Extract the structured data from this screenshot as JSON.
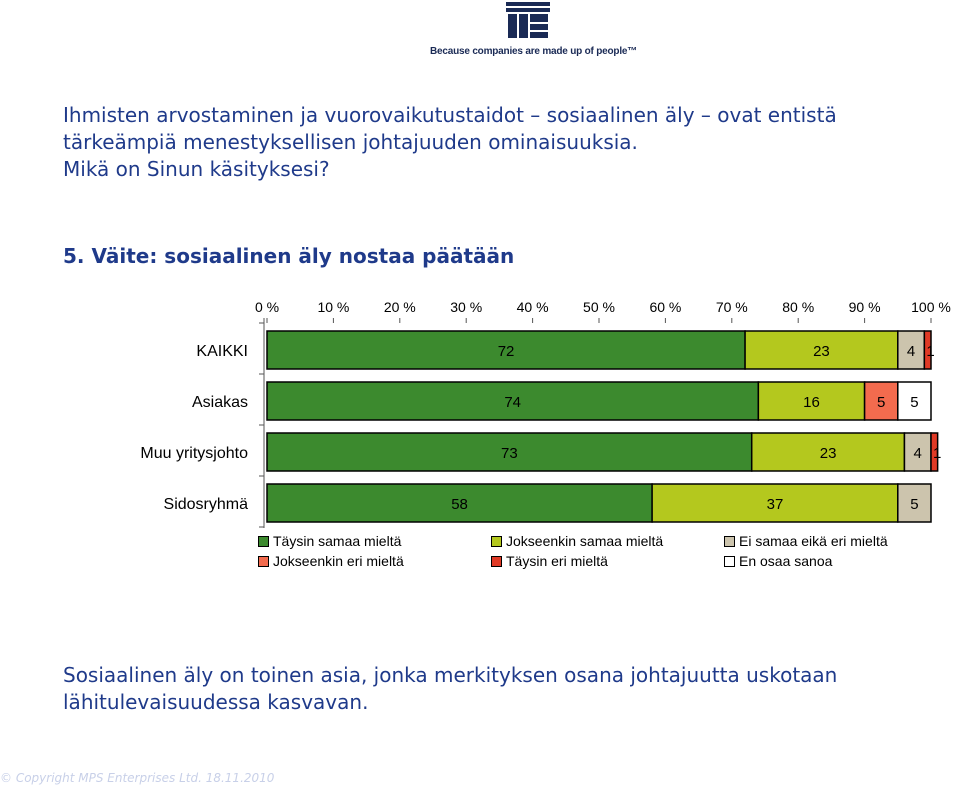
{
  "logo": {
    "tagline": "Because companies are made up of people™",
    "color": "#1a2a55"
  },
  "headline": {
    "line1": "Ihmisten arvostaminen ja vuorovaikutustaidot – sosiaalinen äly – ovat entistä",
    "line2": "tärkeämpiä menestyksellisen johtajuuden ominaisuuksia.",
    "line3": "Mikä on Sinun käsityksesi?"
  },
  "subtitle": "5. Väite: sosiaalinen äly nostaa päätään",
  "chart_data": {
    "type": "bar",
    "orientation": "horizontal",
    "stacked": true,
    "categories": [
      "KAIKKI",
      "Asiakas",
      "Muu yritysjohto",
      "Sidosryhmä"
    ],
    "series": [
      {
        "name": "Täysin samaa mieltä",
        "color": "#3c8a2e",
        "values": [
          72,
          74,
          73,
          58
        ]
      },
      {
        "name": "Jokseenkin samaa mieltä",
        "color": "#b4c81e",
        "values": [
          23,
          16,
          23,
          37
        ]
      },
      {
        "name": "Ei samaa eikä eri mieltä",
        "color": "#ccc4ad",
        "values": [
          4,
          0,
          4,
          5
        ]
      },
      {
        "name": "Jokseenkin eri mieltä",
        "color": "#f36b4e",
        "values": [
          0,
          5,
          0,
          0
        ]
      },
      {
        "name": "Täysin eri mieltä",
        "color": "#e03a26",
        "values": [
          1,
          0,
          1,
          0
        ]
      },
      {
        "name": "En osaa sanoa",
        "color": "#ffffff",
        "values": [
          0,
          5,
          0,
          0
        ]
      }
    ],
    "xlim": [
      0,
      100
    ],
    "xticks": [
      "0 %",
      "10 %",
      "20 %",
      "30 %",
      "40 %",
      "50 %",
      "60 %",
      "70 %",
      "80 %",
      "90 %",
      "100 %"
    ],
    "axis_position": "top",
    "legend_position": "bottom",
    "grid": false
  },
  "conclusion": {
    "line1": "Sosiaalinen äly on toinen asia, jonka merkityksen osana johtajuutta uskotaan",
    "line2": "lähitulevaisuudessa kasvavan."
  },
  "footer": "© Copyright MPS Enterprises Ltd.  18.11.2010"
}
